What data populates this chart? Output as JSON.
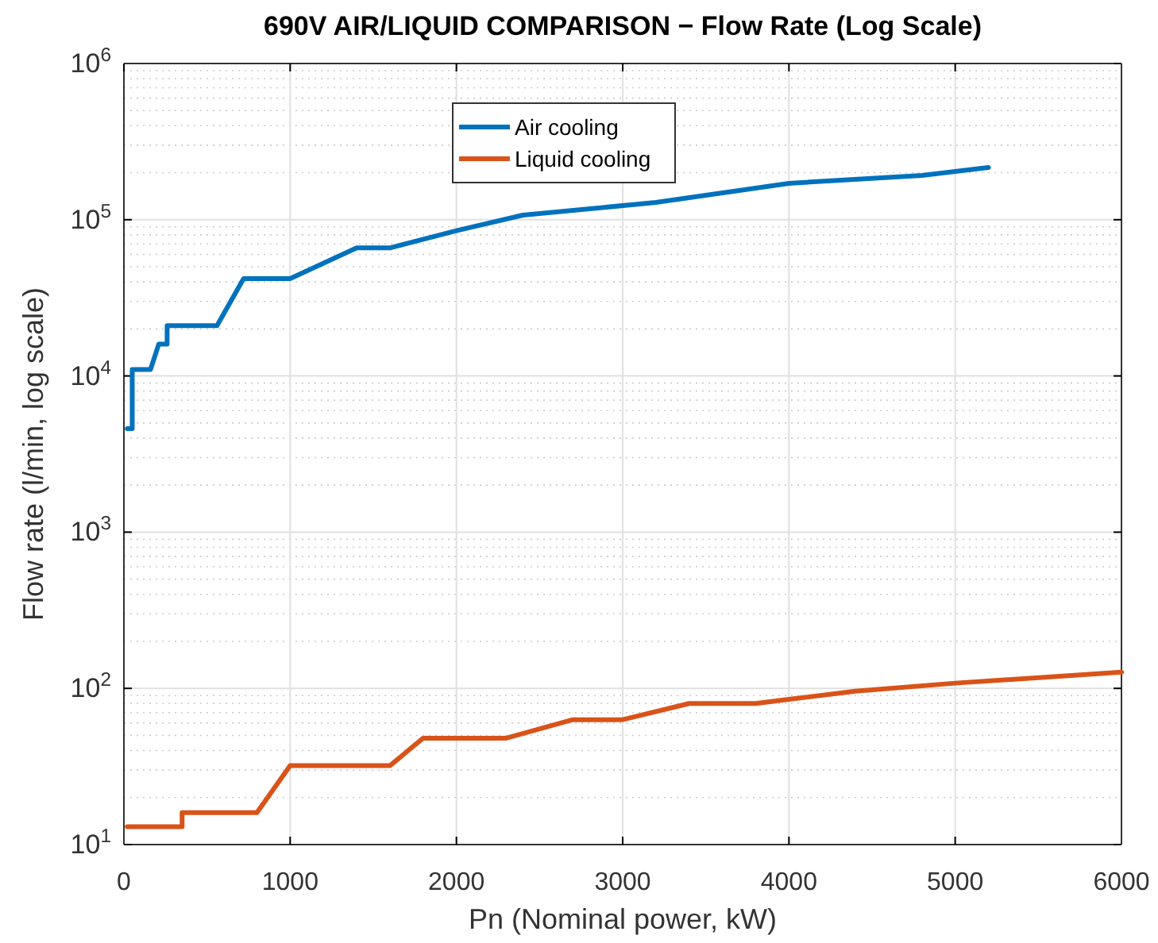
{
  "chart_data": {
    "type": "line",
    "title": "690V AIR/LIQUID COMPARISON − Flow Rate (Log Scale)",
    "xlabel": "Pn (Nominal power, kW)",
    "ylabel": "Flow rate (l/min, log scale)",
    "log": "y",
    "grid": true,
    "legend": "top",
    "line_style": "solid",
    "marker": "none",
    "xlim": [
      0,
      6000
    ],
    "xticks": [
      0,
      1000,
      2000,
      3000,
      4000,
      5000,
      6000
    ],
    "ylim": [
      10,
      1000000
    ],
    "yticks": [
      {
        "value": 10,
        "label": "10$^{1}$"
      },
      {
        "value": 100,
        "label": "10$^{2}$"
      },
      {
        "value": 1000,
        "label": "10$^{3}$"
      },
      {
        "value": 10000,
        "label": "10$^{4}$"
      },
      {
        "value": 100000,
        "label": "10$^{5}$"
      },
      {
        "value": 1000000,
        "label": "10$^{6}$"
      }
    ],
    "series": [
      {
        "name": "Air cooling",
        "color": "#0072bd",
        "x": [
          20,
          50,
          50,
          160,
          210,
          210,
          260,
          260,
          560,
          720,
          1000,
          1400,
          1600,
          2000,
          2400,
          3200,
          4000,
          4800,
          5200
        ],
        "values": [
          4600,
          4600,
          11000,
          11000,
          16000,
          16000,
          16000,
          21000,
          21000,
          42000,
          42000,
          66000,
          66000,
          85000,
          107000,
          129000,
          171000,
          192000,
          216000
        ]
      },
      {
        "name": "Liquid cooling",
        "color": "#d95319",
        "x": [
          20,
          350,
          350,
          800,
          1000,
          1600,
          1800,
          2300,
          2700,
          3000,
          3400,
          3800,
          4000,
          4400,
          5000,
          6000
        ],
        "values": [
          13,
          13,
          16,
          16,
          32,
          32,
          48,
          48,
          63,
          63,
          80,
          80,
          85,
          96,
          108,
          127
        ]
      }
    ]
  }
}
